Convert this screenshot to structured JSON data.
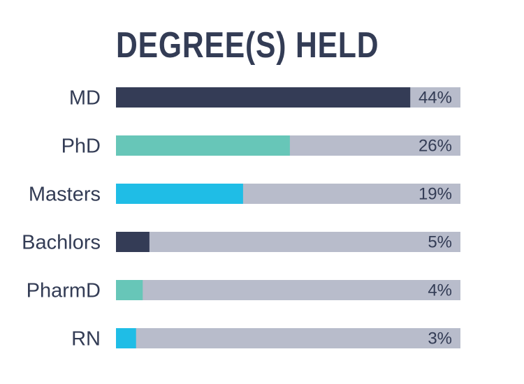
{
  "chart_data": {
    "type": "bar",
    "orientation": "horizontal",
    "title": "DEGREE(S) HELD",
    "categories": [
      "MD",
      "PhD",
      "Masters",
      "Bachlors",
      "PharmD",
      "RN"
    ],
    "values": [
      44,
      26,
      19,
      5,
      4,
      3
    ],
    "value_labels": [
      "44%",
      "26%",
      "19%",
      "5%",
      "4%",
      "3%"
    ],
    "unit": "%",
    "xlim": [
      0,
      51.5
    ],
    "grid": false,
    "legend": "none",
    "colors": {
      "bars": [
        "#343c56",
        "#67c6b8",
        "#1fbde6",
        "#343c56",
        "#67c6b8",
        "#1fbde6"
      ],
      "track": "#b8bccb",
      "text": "#333c55"
    }
  }
}
